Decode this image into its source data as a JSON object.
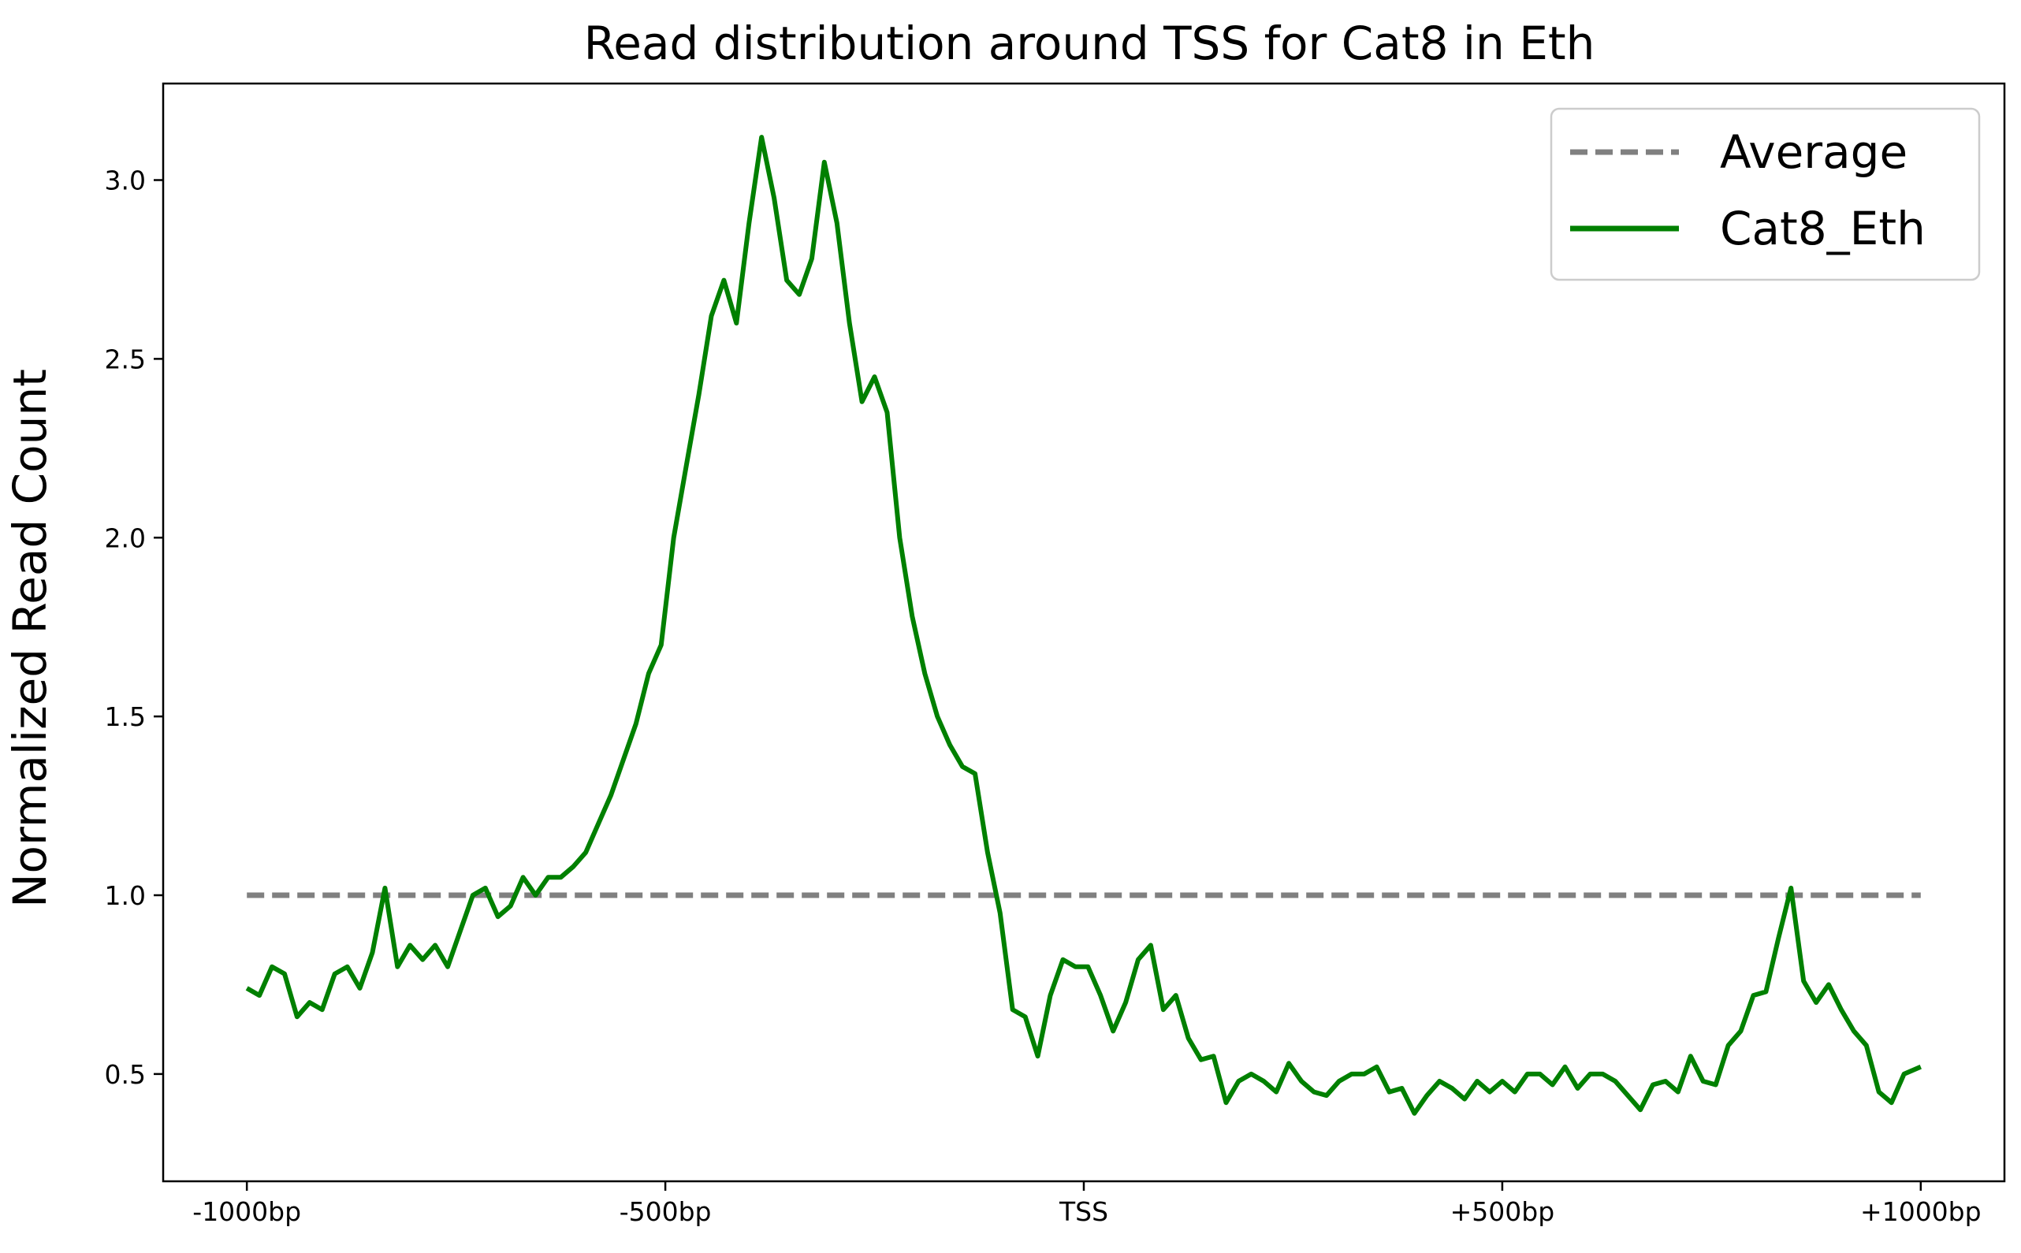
{
  "chart_data": {
    "type": "line",
    "title": "Read distribution around TSS for Cat8 in Eth",
    "xlabel": "",
    "ylabel": "Normalized Read Count",
    "xlim": [
      -1100,
      1100
    ],
    "ylim": [
      0.2,
      3.27
    ],
    "x_ticks": [
      -1000,
      -500,
      0,
      500,
      1000
    ],
    "x_tick_labels": [
      "-1000bp",
      "-500bp",
      "TSS",
      "+500bp",
      "+1000bp"
    ],
    "y_ticks": [
      0.5,
      1.0,
      1.5,
      2.0,
      2.5,
      3.0
    ],
    "y_tick_labels": [
      "0.5",
      "1.0",
      "1.5",
      "2.0",
      "2.5",
      "3.0"
    ],
    "grid": false,
    "legend_position": "top-right",
    "series": [
      {
        "name": "Average",
        "style": "dashed",
        "color": "#808080",
        "x": [
          -1000,
          1000
        ],
        "y": [
          1.0,
          1.0
        ]
      },
      {
        "name": "Cat8_Eth",
        "style": "solid",
        "color": "#008000",
        "x": [
          -1000,
          -985,
          -970,
          -955,
          -940,
          -925,
          -910,
          -895,
          -880,
          -865,
          -850,
          -835,
          -820,
          -805,
          -790,
          -775,
          -760,
          -745,
          -730,
          -715,
          -700,
          -685,
          -670,
          -655,
          -640,
          -625,
          -610,
          -595,
          -580,
          -565,
          -550,
          -535,
          -520,
          -505,
          -490,
          -475,
          -460,
          -445,
          -430,
          -415,
          -400,
          -385,
          -370,
          -355,
          -340,
          -325,
          -310,
          -295,
          -280,
          -265,
          -250,
          -235,
          -220,
          -205,
          -190,
          -175,
          -160,
          -145,
          -130,
          -115,
          -100,
          -85,
          -70,
          -55,
          -40,
          -25,
          -10,
          5,
          20,
          35,
          50,
          65,
          80,
          95,
          110,
          125,
          140,
          155,
          170,
          185,
          200,
          215,
          230,
          245,
          260,
          275,
          290,
          305,
          320,
          335,
          350,
          365,
          380,
          395,
          410,
          425,
          440,
          455,
          470,
          485,
          500,
          515,
          530,
          545,
          560,
          575,
          590,
          605,
          620,
          635,
          650,
          665,
          680,
          695,
          710,
          725,
          740,
          755,
          770,
          785,
          800,
          815,
          830,
          845,
          860,
          875,
          890,
          905,
          920,
          935,
          950,
          965,
          980,
          1000
        ],
        "y": [
          0.74,
          0.72,
          0.8,
          0.78,
          0.66,
          0.7,
          0.68,
          0.78,
          0.8,
          0.74,
          0.84,
          1.02,
          0.8,
          0.86,
          0.82,
          0.86,
          0.8,
          0.9,
          1.0,
          1.02,
          0.94,
          0.97,
          1.05,
          1.0,
          1.05,
          1.05,
          1.08,
          1.12,
          1.2,
          1.28,
          1.38,
          1.48,
          1.62,
          1.7,
          2.0,
          2.2,
          2.4,
          2.62,
          2.72,
          2.6,
          2.88,
          3.12,
          2.95,
          2.72,
          2.68,
          2.78,
          3.05,
          2.88,
          2.6,
          2.38,
          2.45,
          2.35,
          2.0,
          1.78,
          1.62,
          1.5,
          1.42,
          1.36,
          1.34,
          1.12,
          0.95,
          0.68,
          0.66,
          0.55,
          0.72,
          0.82,
          0.8,
          0.8,
          0.72,
          0.62,
          0.7,
          0.82,
          0.86,
          0.68,
          0.72,
          0.6,
          0.54,
          0.55,
          0.42,
          0.48,
          0.5,
          0.48,
          0.45,
          0.53,
          0.48,
          0.45,
          0.44,
          0.48,
          0.5,
          0.5,
          0.52,
          0.45,
          0.46,
          0.39,
          0.44,
          0.48,
          0.46,
          0.43,
          0.48,
          0.45,
          0.48,
          0.45,
          0.5,
          0.5,
          0.47,
          0.52,
          0.46,
          0.5,
          0.5,
          0.48,
          0.44,
          0.4,
          0.47,
          0.48,
          0.45,
          0.55,
          0.48,
          0.47,
          0.58,
          0.62,
          0.72,
          0.73,
          0.88,
          1.02,
          0.76,
          0.7,
          0.75,
          0.68,
          0.62,
          0.58,
          0.45,
          0.42,
          0.5,
          0.52
        ]
      }
    ]
  }
}
